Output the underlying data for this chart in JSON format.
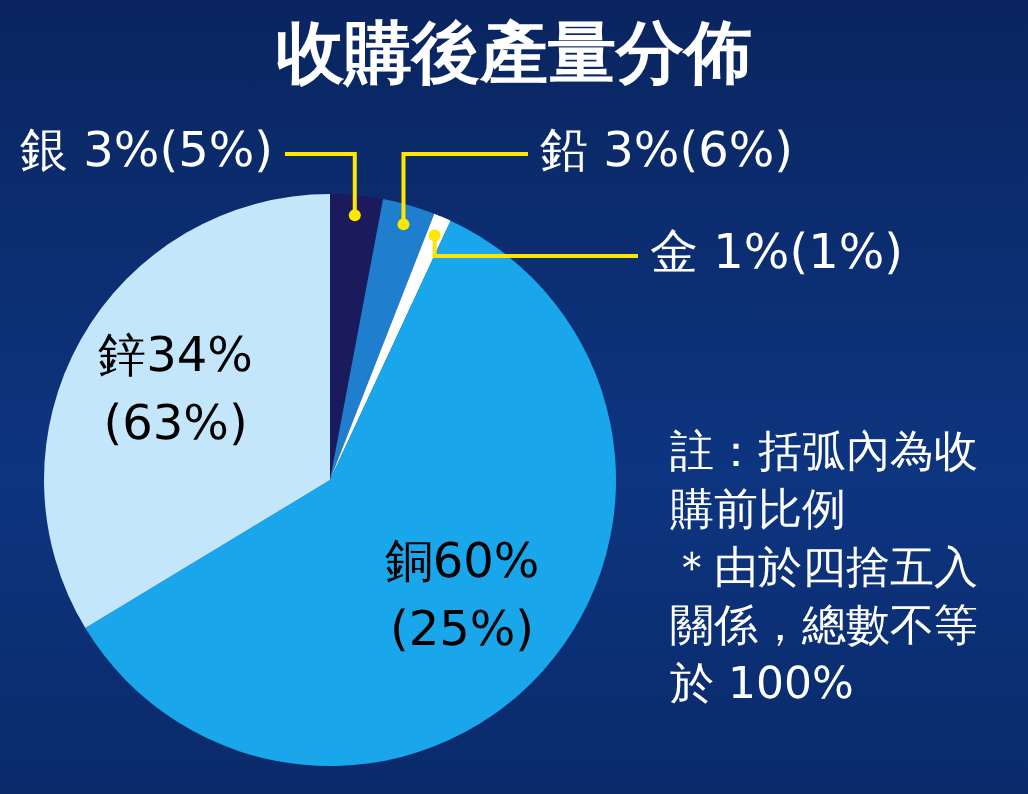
{
  "chart_data": {
    "type": "pie",
    "title": "收購後產量分佈",
    "categories": [
      "銀",
      "鉛",
      "金",
      "銅",
      "鋅"
    ],
    "values": [
      3,
      3,
      1,
      60,
      34
    ],
    "value_labels": [
      "3%(5%)",
      "3%(6%)",
      "1%(1%)",
      "60%(25%)",
      "34%(63%)"
    ],
    "colors": [
      "#1b1a5c",
      "#1f7fce",
      "#ffffff",
      "#19a6ea",
      "#c4e6fa"
    ],
    "annotations": [
      "註：括弧內為收購前比例",
      "＊由於四捨五入關係，總數不等於 100%"
    ]
  }
}
